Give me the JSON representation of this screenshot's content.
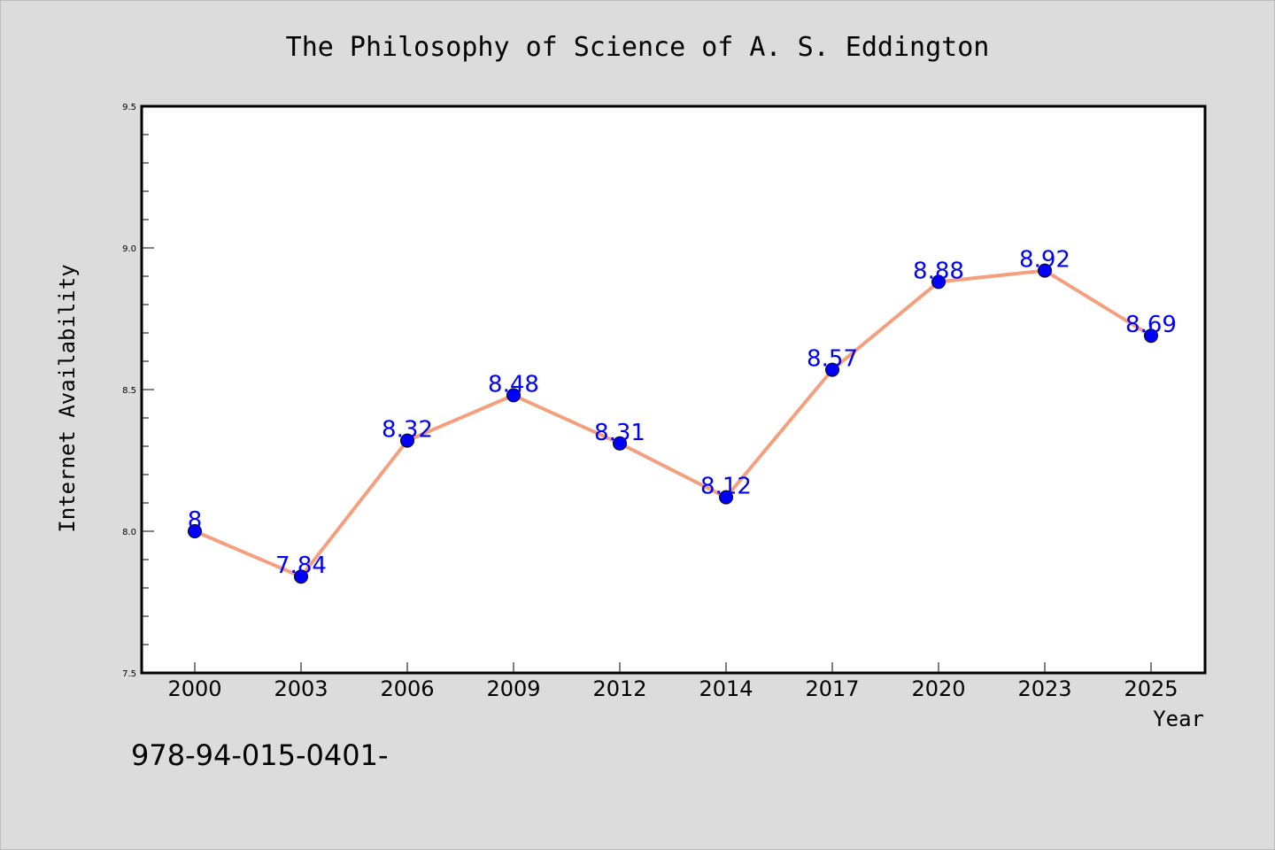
{
  "chart_data": {
    "type": "line",
    "title": "The Philosophy of Science of A. S. Eddington",
    "xlabel": "Year",
    "ylabel": "Internet Availability",
    "categories": [
      "2000",
      "2003",
      "2006",
      "2009",
      "2012",
      "2014",
      "2017",
      "2020",
      "2023",
      "2025"
    ],
    "series": [
      {
        "values": [
          8.0,
          7.84,
          8.32,
          8.48,
          8.31,
          8.12,
          8.57,
          8.88,
          8.92,
          8.69
        ]
      }
    ],
    "data_labels": [
      "8",
      "7.84",
      "8.32",
      "8.48",
      "8.31",
      "8.12",
      "8.57",
      "8.88",
      "8.92",
      "8.69"
    ],
    "ylim": [
      7.5,
      9.5
    ],
    "yticks": [
      "7.5",
      "8.0",
      "8.5",
      "9.0",
      "9.5"
    ],
    "grid": false,
    "line_color": "#f4a07f",
    "marker_color": "#0000ff",
    "label_color": "#0000ff"
  },
  "footer": {
    "text": "978-94-015-0401-"
  }
}
